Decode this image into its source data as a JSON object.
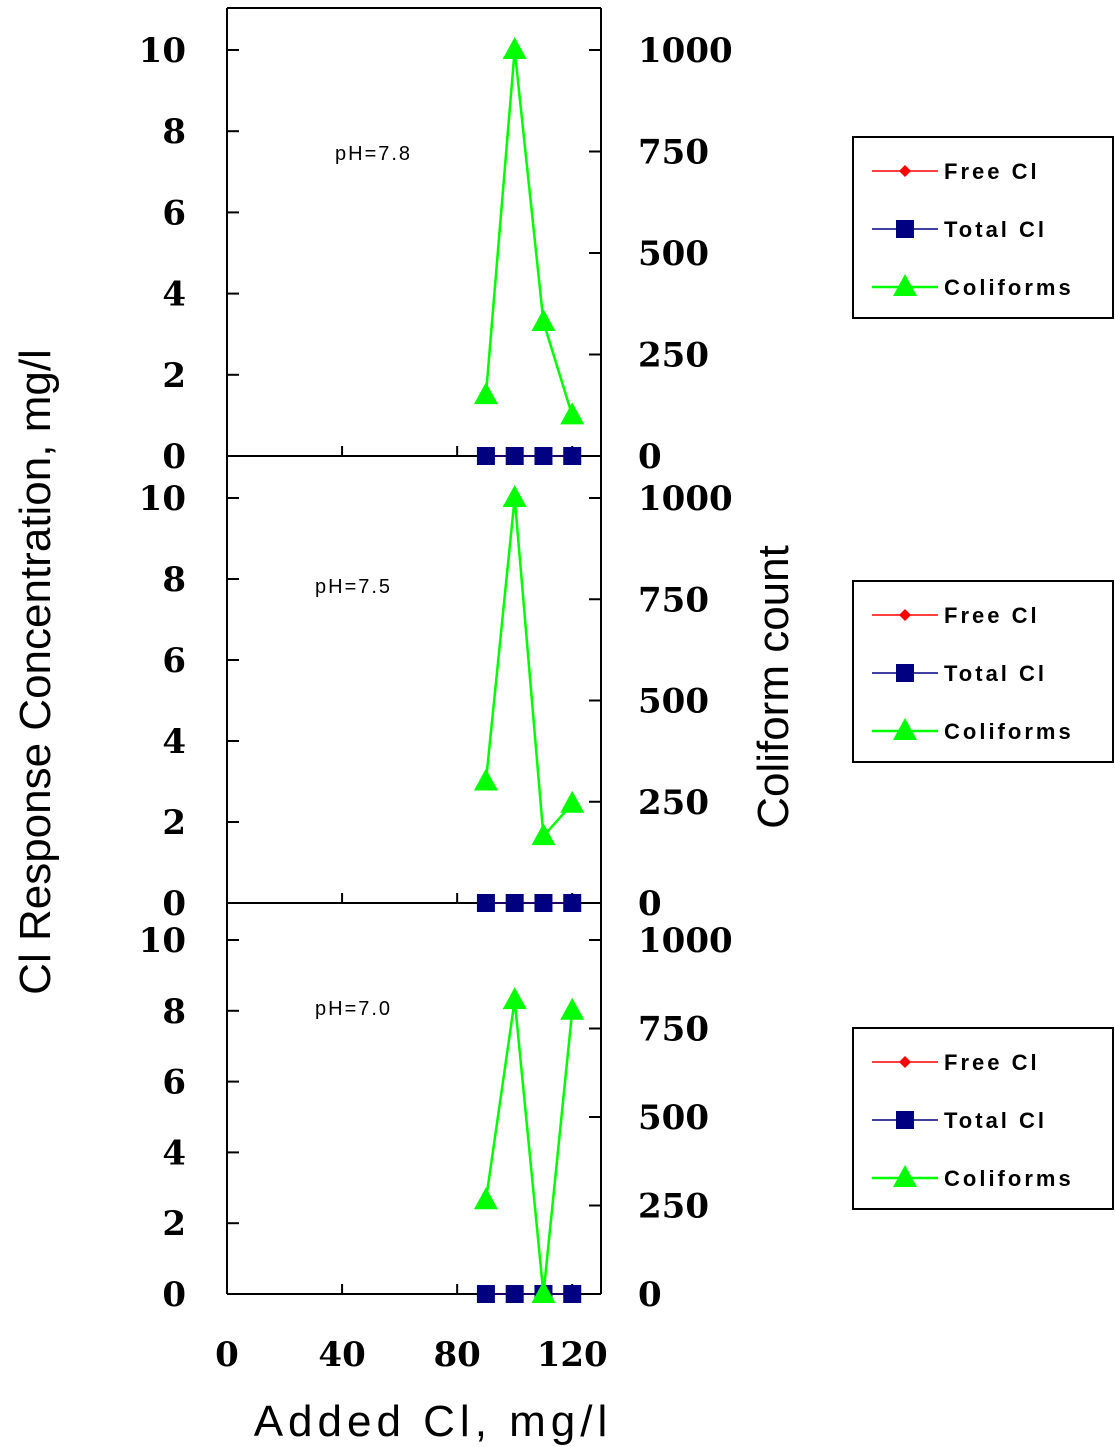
{
  "chart_data": {
    "type": "line",
    "xlabel": "Added Cl, mg/l",
    "ylabel": "Cl Response Concentration, mg/l",
    "y2label": "Coliform count",
    "xlim": [
      0,
      130
    ],
    "xticks": [
      "0",
      "40",
      "80",
      "120"
    ],
    "ylim": [
      0,
      10
    ],
    "yticks": [
      "0",
      "2",
      "4",
      "6",
      "8",
      "10"
    ],
    "y2lim": [
      0,
      1000
    ],
    "y2ticks": [
      "0",
      "250",
      "500",
      "750",
      "1000"
    ],
    "grid": false,
    "legend_position": "right",
    "legend": [
      {
        "name": "Free Cl",
        "color": "#ff0000",
        "marker": "diamond"
      },
      {
        "name": "Total Cl",
        "color": "#000080",
        "marker": "square"
      },
      {
        "name": "Coliforms",
        "color": "#00ff00",
        "marker": "triangle"
      }
    ],
    "panels": [
      {
        "annotation": "pH=7.8",
        "x": [
          90,
          100,
          110,
          120
        ],
        "series": [
          {
            "name": "Free Cl",
            "axis": "left",
            "values": [
              0,
              0,
              0,
              0
            ]
          },
          {
            "name": "Total Cl",
            "axis": "left",
            "values": [
              0,
              0,
              0,
              0
            ]
          },
          {
            "name": "Coliforms",
            "axis": "right",
            "values": [
              150,
              1000,
              330,
              100
            ]
          }
        ]
      },
      {
        "annotation": "pH=7.5",
        "x": [
          90,
          100,
          110,
          120
        ],
        "series": [
          {
            "name": "Free Cl",
            "axis": "left",
            "values": [
              0,
              0,
              0,
              0
            ]
          },
          {
            "name": "Total Cl",
            "axis": "left",
            "values": [
              0,
              0,
              0,
              0
            ]
          },
          {
            "name": "Coliforms",
            "axis": "right",
            "values": [
              300,
              1000,
              165,
              245
            ]
          }
        ]
      },
      {
        "annotation": "pH=7.0",
        "x": [
          90,
          100,
          110,
          120
        ],
        "series": [
          {
            "name": "Free Cl",
            "axis": "left",
            "values": [
              0,
              0,
              0,
              0
            ]
          },
          {
            "name": "Total Cl",
            "axis": "left",
            "values": [
              0,
              0,
              0,
              0
            ]
          },
          {
            "name": "Coliforms",
            "axis": "right",
            "values": [
              265,
              830,
              0,
              800
            ]
          }
        ]
      }
    ]
  }
}
